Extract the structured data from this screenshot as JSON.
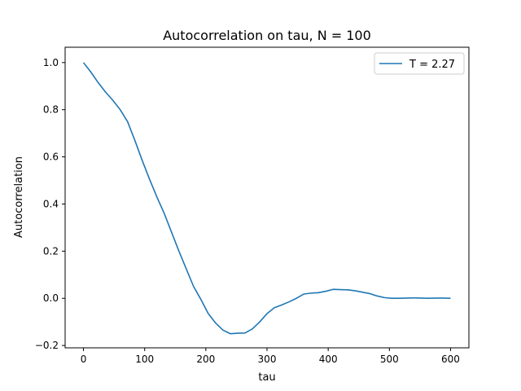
{
  "chart_data": {
    "type": "line",
    "title": "Autocorrelation on tau, N = 100",
    "xlabel": "tau",
    "ylabel": "Autocorrelation",
    "xlim": [
      -30,
      630
    ],
    "ylim": [
      -0.21,
      1.065
    ],
    "xticks": [
      0,
      100,
      200,
      300,
      400,
      500,
      600
    ],
    "yticks": [
      -0.2,
      0.0,
      0.2,
      0.4,
      0.6,
      0.8,
      1.0
    ],
    "xtick_labels": [
      "0",
      "100",
      "200",
      "300",
      "400",
      "500",
      "600"
    ],
    "ytick_labels": [
      "−0.2",
      "0.0",
      "0.2",
      "0.4",
      "0.6",
      "0.8",
      "1.0"
    ],
    "grid": false,
    "legend_position": "top-right",
    "series": [
      {
        "name": "T = 2.27",
        "color": "#1f77b4",
        "x": [
          0,
          12,
          24,
          36,
          48,
          60,
          72,
          84,
          96,
          108,
          120,
          132,
          144,
          156,
          168,
          180,
          192,
          204,
          216,
          228,
          240,
          252,
          264,
          276,
          288,
          300,
          312,
          324,
          336,
          348,
          360,
          372,
          384,
          396,
          408,
          420,
          432,
          444,
          456,
          468,
          480,
          492,
          504,
          516,
          528,
          540,
          552,
          564,
          576,
          588,
          600
        ],
        "y": [
          1.0,
          0.96,
          0.915,
          0.875,
          0.84,
          0.8,
          0.75,
          0.67,
          0.585,
          0.505,
          0.43,
          0.36,
          0.28,
          0.2,
          0.125,
          0.05,
          -0.005,
          -0.065,
          -0.105,
          -0.135,
          -0.15,
          -0.148,
          -0.147,
          -0.13,
          -0.1,
          -0.065,
          -0.04,
          -0.028,
          -0.015,
          0.0,
          0.018,
          0.022,
          0.024,
          0.03,
          0.038,
          0.037,
          0.036,
          0.032,
          0.026,
          0.02,
          0.01,
          0.003,
          0.0,
          0.0,
          0.001,
          0.002,
          0.001,
          0.0,
          0.001,
          0.001,
          0.0
        ]
      }
    ]
  }
}
